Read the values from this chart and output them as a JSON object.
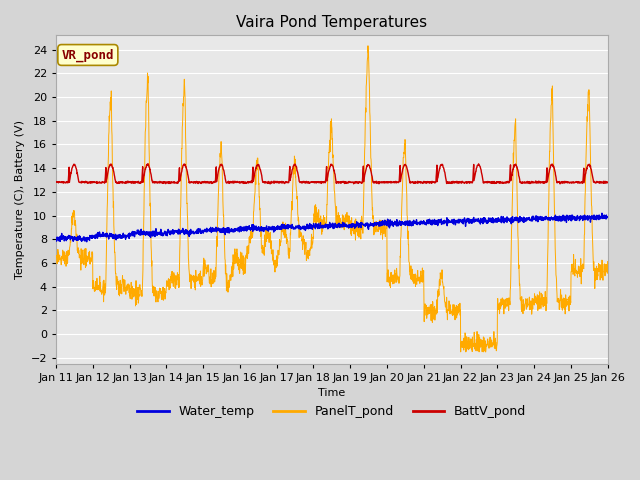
{
  "title": "Vaira Pond Temperatures",
  "xlabel": "Time",
  "ylabel": "Temperature (C), Battery (V)",
  "ylim_min": -2,
  "ylim_max": 25,
  "yticks": [
    -2,
    0,
    2,
    4,
    6,
    8,
    10,
    12,
    14,
    16,
    18,
    20,
    22,
    24
  ],
  "xtick_labels": [
    "Jan 11",
    "Jan 12",
    "Jan 13",
    "Jan 14",
    "Jan 15",
    "Jan 16",
    "Jan 17",
    "Jan 18",
    "Jan 19",
    "Jan 20",
    "Jan 21",
    "Jan 22",
    "Jan 23",
    "Jan 24",
    "Jan 25",
    "Jan 26"
  ],
  "fig_bg_color": "#d5d5d5",
  "plot_bg_color": "#e8e8e8",
  "water_temp_color": "#0000dd",
  "panel_temp_color": "#ffaa00",
  "batt_color": "#cc0000",
  "grid_color": "#ffffff",
  "title_fontsize": 11,
  "axis_label_fontsize": 8,
  "tick_fontsize": 8,
  "legend_fontsize": 9,
  "annotation_text": "VR_pond",
  "annotation_color": "#880000",
  "annotation_bg": "#ffffcc",
  "annotation_edge": "#aa8800",
  "annotation_fontsize": 9
}
